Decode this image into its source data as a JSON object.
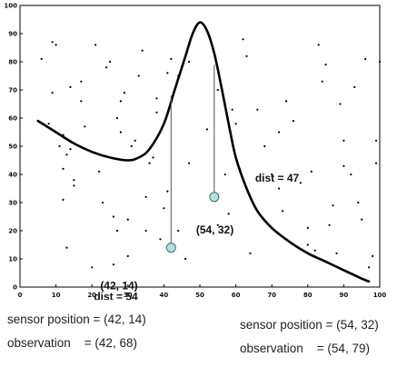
{
  "chart_data": {
    "type": "scatter",
    "xlim": [
      0,
      100
    ],
    "ylim": [
      0,
      100
    ],
    "x_ticks": [
      0,
      10,
      20,
      30,
      40,
      50,
      60,
      70,
      80,
      90,
      100
    ],
    "y_ticks": [
      0,
      10,
      20,
      30,
      40,
      50,
      60,
      70,
      80,
      90,
      100
    ],
    "grid": false,
    "legend": "none",
    "terrain_curve": [
      [
        5,
        59
      ],
      [
        10,
        55
      ],
      [
        15,
        51
      ],
      [
        20,
        48
      ],
      [
        25,
        46
      ],
      [
        30,
        45
      ],
      [
        33,
        46
      ],
      [
        36,
        49
      ],
      [
        40,
        58
      ],
      [
        43,
        70
      ],
      [
        46,
        82
      ],
      [
        48,
        90
      ],
      [
        50,
        94
      ],
      [
        52,
        91
      ],
      [
        54,
        83
      ],
      [
        56,
        71
      ],
      [
        58,
        58
      ],
      [
        60,
        46
      ],
      [
        63,
        35
      ],
      [
        66,
        27
      ],
      [
        70,
        21
      ],
      [
        75,
        16
      ],
      [
        80,
        12
      ],
      [
        85,
        9
      ],
      [
        90,
        6
      ],
      [
        95,
        3
      ],
      [
        97,
        2
      ]
    ],
    "landmarks": [
      [
        6,
        81
      ],
      [
        8,
        58
      ],
      [
        9,
        69
      ],
      [
        9,
        87
      ],
      [
        10,
        86
      ],
      [
        11,
        50
      ],
      [
        12,
        31
      ],
      [
        12,
        42
      ],
      [
        12,
        54
      ],
      [
        13,
        14
      ],
      [
        13,
        47
      ],
      [
        14,
        49
      ],
      [
        14,
        71
      ],
      [
        15,
        36
      ],
      [
        15,
        38
      ],
      [
        17,
        66
      ],
      [
        17,
        73
      ],
      [
        18,
        57
      ],
      [
        20,
        7
      ],
      [
        21,
        86
      ],
      [
        22,
        41
      ],
      [
        23,
        30
      ],
      [
        24,
        78
      ],
      [
        25,
        80
      ],
      [
        26,
        8
      ],
      [
        26,
        25
      ],
      [
        27,
        20
      ],
      [
        27,
        60
      ],
      [
        28,
        55
      ],
      [
        28,
        66
      ],
      [
        29,
        69
      ],
      [
        30,
        11
      ],
      [
        30,
        24
      ],
      [
        31,
        50
      ],
      [
        32,
        52
      ],
      [
        33,
        75
      ],
      [
        34,
        84
      ],
      [
        35,
        20
      ],
      [
        35,
        32
      ],
      [
        36,
        44
      ],
      [
        37,
        46
      ],
      [
        38,
        62
      ],
      [
        38,
        67
      ],
      [
        39,
        17
      ],
      [
        40,
        28
      ],
      [
        41,
        34
      ],
      [
        41,
        76
      ],
      [
        42,
        81
      ],
      [
        44,
        20
      ],
      [
        44,
        75
      ],
      [
        46,
        10
      ],
      [
        47,
        44
      ],
      [
        47,
        80
      ],
      [
        52,
        56
      ],
      [
        55,
        70
      ],
      [
        55,
        22
      ],
      [
        57,
        40
      ],
      [
        58,
        26
      ],
      [
        59,
        63
      ],
      [
        60,
        58
      ],
      [
        62,
        88
      ],
      [
        63,
        82
      ],
      [
        64,
        12
      ],
      [
        66,
        63
      ],
      [
        68,
        50
      ],
      [
        70,
        40
      ],
      [
        72,
        35
      ],
      [
        72,
        55
      ],
      [
        73,
        27
      ],
      [
        74,
        66
      ],
      [
        76,
        59
      ],
      [
        78,
        37
      ],
      [
        80,
        15
      ],
      [
        80,
        21
      ],
      [
        81,
        41
      ],
      [
        82,
        13
      ],
      [
        83,
        86
      ],
      [
        84,
        73
      ],
      [
        85,
        79
      ],
      [
        86,
        22
      ],
      [
        87,
        29
      ],
      [
        88,
        12
      ],
      [
        89,
        65
      ],
      [
        90,
        43
      ],
      [
        90,
        52
      ],
      [
        92,
        40
      ],
      [
        93,
        71
      ],
      [
        94,
        30
      ],
      [
        95,
        24
      ],
      [
        96,
        81
      ],
      [
        97,
        7
      ],
      [
        98,
        11
      ],
      [
        99,
        44
      ],
      [
        99,
        52
      ],
      [
        100,
        80
      ]
    ],
    "sensors": [
      {
        "position": [
          42,
          14
        ],
        "observation": [
          42,
          68
        ],
        "dist_label": "dist = 54",
        "pos_label": "(42, 14)"
      },
      {
        "position": [
          54,
          32
        ],
        "observation": [
          54,
          79
        ],
        "dist_label": "dist = 47",
        "pos_label": "(54, 32)"
      }
    ],
    "colors": {
      "sensor_fill": "#b8e0e0",
      "sensor_stroke": "#3e6e70",
      "curve": "#000000",
      "line": "#555555"
    }
  },
  "captions": {
    "left": {
      "sensor": "sensor position = (42, 14)",
      "observation": "observation    = (42, 68)"
    },
    "right": {
      "sensor": "sensor position = (54, 32)",
      "observation": "observation    = (54, 79)"
    }
  }
}
